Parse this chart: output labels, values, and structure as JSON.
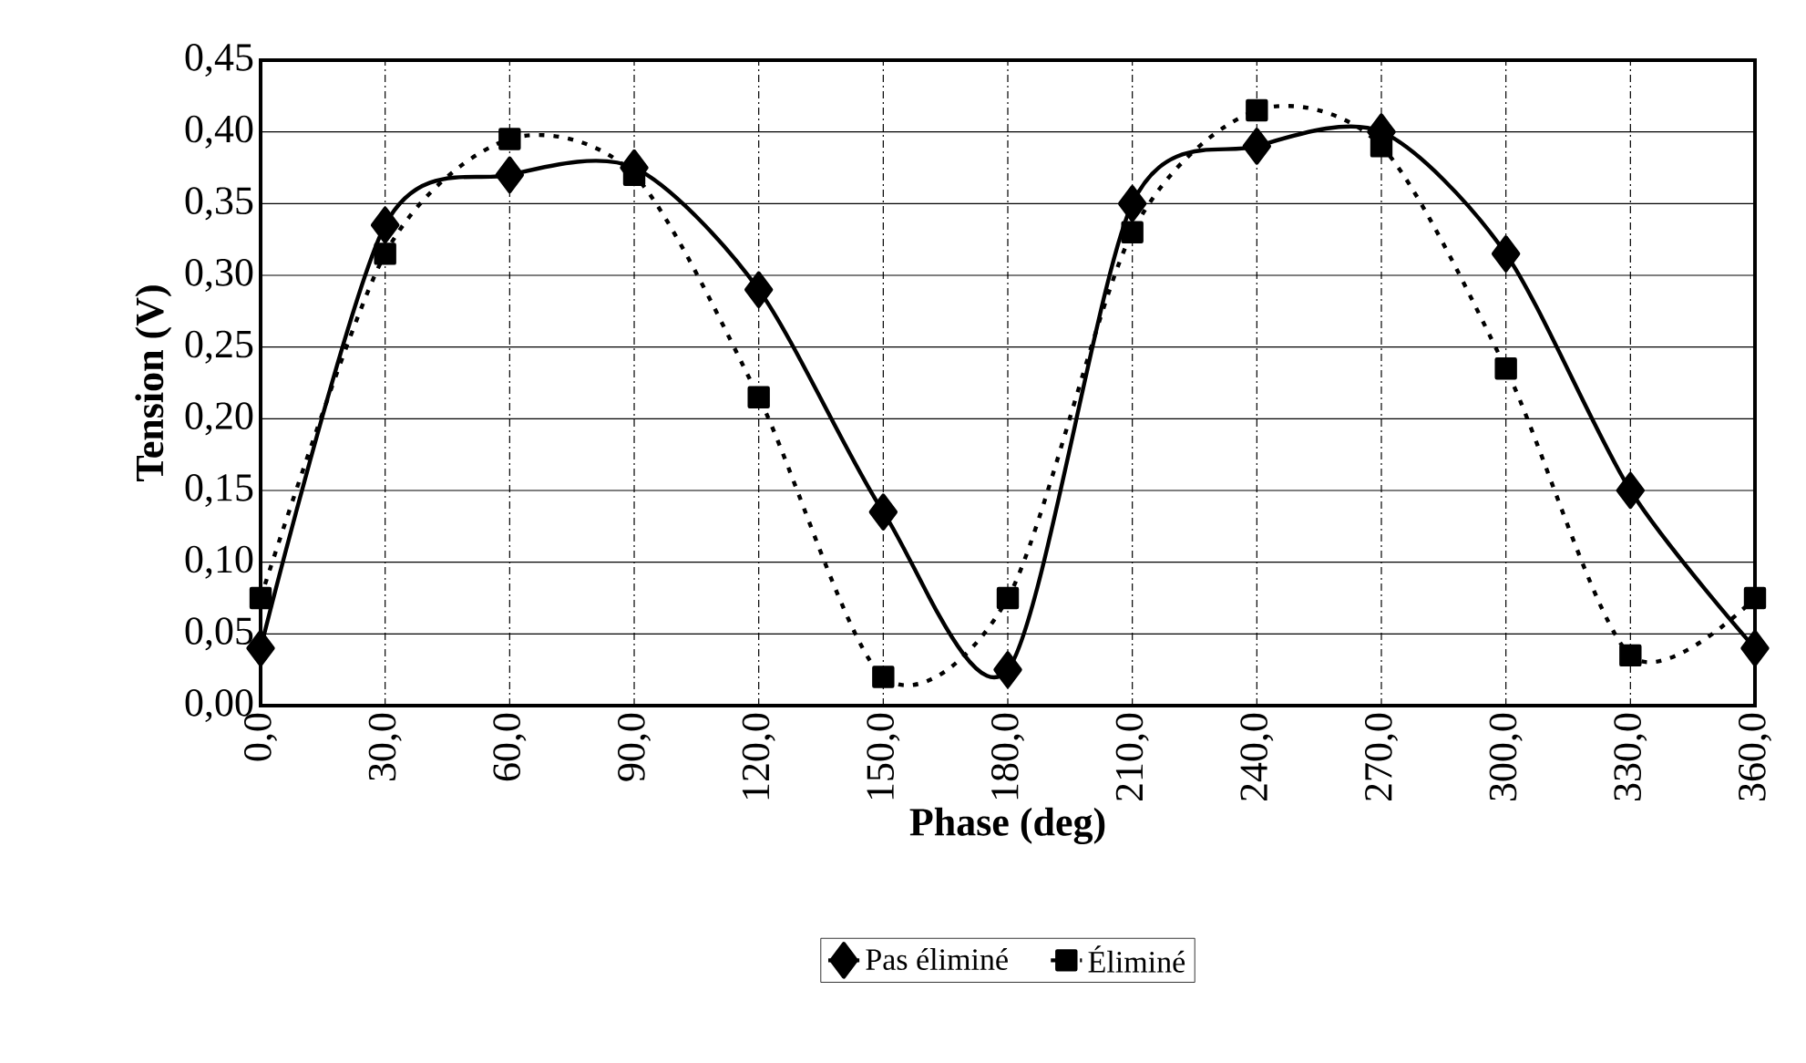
{
  "chart_data": {
    "type": "line",
    "xlabel": "Phase (deg)",
    "ylabel": "Tension (V)",
    "x": [
      0,
      30,
      60,
      90,
      120,
      150,
      180,
      210,
      240,
      270,
      300,
      330,
      360
    ],
    "series": [
      {
        "name": "Pas éliminé",
        "color": "#000000",
        "marker": "diamond",
        "line_style": "solid",
        "values": [
          0.04,
          0.335,
          0.37,
          0.375,
          0.29,
          0.135,
          0.025,
          0.35,
          0.39,
          0.4,
          0.315,
          0.15,
          0.04
        ]
      },
      {
        "name": "Éliminé",
        "color": "#000000",
        "marker": "square",
        "line_style": "dotted",
        "values": [
          0.075,
          0.315,
          0.395,
          0.37,
          0.215,
          0.02,
          0.075,
          0.33,
          0.415,
          0.39,
          0.235,
          0.035,
          0.075
        ]
      }
    ],
    "xlim": [
      0,
      360
    ],
    "ylim": [
      0,
      0.45
    ],
    "xticks": [
      {
        "value": 0,
        "label": "0,0"
      },
      {
        "value": 30,
        "label": "30,0"
      },
      {
        "value": 60,
        "label": "60,0"
      },
      {
        "value": 90,
        "label": "90,0"
      },
      {
        "value": 120,
        "label": "120,0"
      },
      {
        "value": 150,
        "label": "150,0"
      },
      {
        "value": 180,
        "label": "180,0"
      },
      {
        "value": 210,
        "label": "210,0"
      },
      {
        "value": 240,
        "label": "240,0"
      },
      {
        "value": 270,
        "label": "270,0"
      },
      {
        "value": 300,
        "label": "300,0"
      },
      {
        "value": 330,
        "label": "330,0"
      },
      {
        "value": 360,
        "label": "360,0"
      }
    ],
    "yticks": [
      {
        "value": 0,
        "label": "0,00"
      },
      {
        "value": 0.05,
        "label": "0,05"
      },
      {
        "value": 0.1,
        "label": "0,10"
      },
      {
        "value": 0.15,
        "label": "0,15"
      },
      {
        "value": 0.2,
        "label": "0,20"
      },
      {
        "value": 0.25,
        "label": "0,25"
      },
      {
        "value": 0.3,
        "label": "0,30"
      },
      {
        "value": 0.35,
        "label": "0,35"
      },
      {
        "value": 0.4,
        "label": "0,40"
      },
      {
        "value": 0.45,
        "label": "0,45"
      }
    ],
    "grid": true,
    "legend": "bottom"
  }
}
